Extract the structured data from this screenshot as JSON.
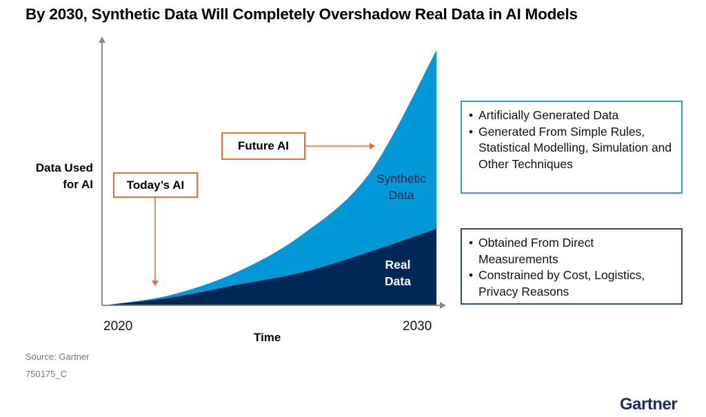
{
  "title": "By 2030,  Synthetic Data Will Completely Overshadow Real Data in AI Models",
  "chart_data": {
    "type": "area",
    "stacked": true,
    "title": "By 2030,  Synthetic Data Will Completely Overshadow Real Data in AI Models",
    "xlabel": "Time",
    "ylabel": "Data Used for AI",
    "x_tick_labels": [
      "2020",
      "2030"
    ],
    "xlim": [
      2020,
      2030
    ],
    "y_scale": "relative (no printed values)",
    "grid": false,
    "x": [
      2020,
      2022,
      2024,
      2026,
      2028,
      2030
    ],
    "series": [
      {
        "name": "Real Data",
        "values": [
          0,
          0.03,
          0.08,
          0.13,
          0.21,
          0.3
        ],
        "color": "#002856"
      },
      {
        "name": "Synthetic Data",
        "values": [
          0,
          0.01,
          0.05,
          0.15,
          0.31,
          0.7
        ],
        "color": "#0098d6"
      }
    ],
    "annotations": [
      {
        "text": "Today's AI",
        "points_to": "early curve near 2021"
      },
      {
        "text": "Future AI",
        "points_to": "synthetic data growth toward 2030"
      }
    ]
  },
  "labels": {
    "ylabel_line1": "Data Used",
    "ylabel_line2": "for AI",
    "today_ai": "Today’s AI",
    "future_ai": "Future AI",
    "synthetic_line1": "Synthetic",
    "synthetic_line2": "Data",
    "real_line1": "Real",
    "real_line2": "Data",
    "x_start": "2020",
    "x_end": "2030",
    "xlabel": "Time"
  },
  "synthetic_box": {
    "border_color": "#2aa0d8",
    "bullets": [
      "Artificially Generated Data",
      "Generated From Simple Rules, Statistical Modelling, Simulation and Other Techniques"
    ]
  },
  "real_box": {
    "border_color": "#2f4a70",
    "bullets": [
      "Obtained From Direct Measurements",
      "Constrained by Cost, Logistics, Privacy Reasons"
    ]
  },
  "footer": {
    "source": "Source: Gartner",
    "id": "750175_C"
  },
  "logo": "Gartner",
  "colors": {
    "accent": "#f26a2e",
    "synthetic": "#0098d6",
    "real": "#002856",
    "axis": "#888888"
  }
}
